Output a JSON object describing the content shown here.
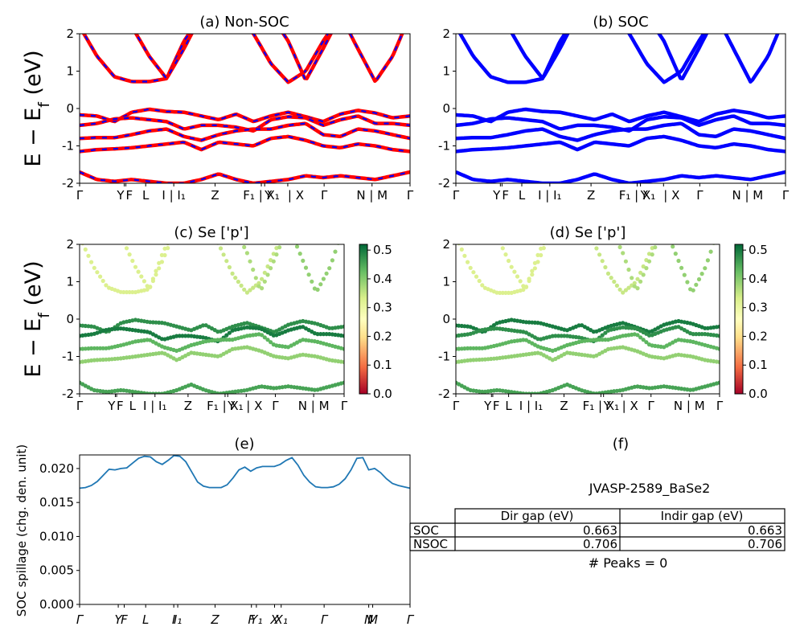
{
  "figure": {
    "material_id": "JVASP-2589_BaSe2",
    "peaks_text": "# Peaks = 0"
  },
  "colors": {
    "nonsoc_band": "#ff0000",
    "soc_band": "#0000ff",
    "spillage_line": "#1f77b4",
    "colormap": [
      "#a50026",
      "#f46d43",
      "#fee08b",
      "#ffffbf",
      "#d9ef8b",
      "#66bd63",
      "#006837"
    ]
  },
  "kpath": {
    "band_labels": [
      "Γ",
      "Y",
      "F",
      "L",
      "I | I₁",
      "Z",
      "F₁ | X₁",
      "Y",
      "| X",
      "Γ",
      "N | M",
      "Γ"
    ],
    "spillage_labels": [
      "Γ",
      "Y",
      "F",
      "L",
      "I",
      "I₁",
      "Z",
      "F",
      "Y₁",
      "X",
      "X₁",
      "Γ",
      "N",
      "M",
      "Γ"
    ]
  },
  "chart_data": [
    {
      "panel": "a",
      "type": "line",
      "title": "(a) Non-SOC",
      "ylabel": "E − E_f (eV)",
      "ylim": [
        -2,
        2
      ],
      "yticks": [
        -2,
        -1,
        0,
        1,
        2
      ],
      "series": [
        {
          "values": [
            -0.17,
            -0.2,
            -0.35,
            -0.1,
            -0.02,
            -0.08,
            -0.1,
            -0.2,
            -0.3,
            -0.15,
            -0.35,
            -0.2,
            -0.1,
            -0.22,
            -0.35,
            -0.15,
            -0.05,
            -0.12,
            -0.25,
            -0.2
          ]
        },
        {
          "values": [
            -0.45,
            -0.4,
            -0.28,
            -0.25,
            -0.3,
            -0.35,
            -0.55,
            -0.45,
            -0.45,
            -0.5,
            -0.6,
            -0.3,
            -0.22,
            -0.25,
            -0.45,
            -0.3,
            -0.2,
            -0.4,
            -0.4,
            -0.45
          ]
        },
        {
          "values": [
            -0.8,
            -0.78,
            -0.78,
            -0.7,
            -0.6,
            -0.55,
            -0.75,
            -0.85,
            -0.7,
            -0.6,
            -0.55,
            -0.55,
            -0.45,
            -0.4,
            -0.7,
            -0.75,
            -0.55,
            -0.6,
            -0.7,
            -0.8
          ]
        },
        {
          "values": [
            -1.15,
            -1.1,
            -1.08,
            -1.05,
            -1.0,
            -0.95,
            -0.9,
            -1.1,
            -0.9,
            -0.95,
            -1.0,
            -0.8,
            -0.75,
            -0.85,
            -1.0,
            -1.05,
            -0.95,
            -1.0,
            -1.1,
            -1.15
          ]
        },
        {
          "values": [
            -1.7,
            -1.9,
            -1.95,
            -1.9,
            -1.95,
            -2.0,
            -2.0,
            -1.9,
            -1.75,
            -1.9,
            -2.0,
            -1.95,
            -1.9,
            -1.8,
            -1.85,
            -1.8,
            -1.85,
            -1.9,
            -1.8,
            -1.7
          ]
        },
        {
          "values": [
            2.2,
            1.4,
            0.85,
            0.72,
            0.72,
            0.8,
            1.8,
            2.5,
            2.5,
            2.5,
            2.5,
            2.5,
            2.5,
            2.5,
            2.5,
            2.5,
            2.5,
            2.5,
            2.5,
            2.5
          ]
        },
        {
          "values": [
            2.5,
            2.5,
            2.5,
            2.2,
            1.4,
            0.8,
            1.6,
            2.5,
            2.5,
            2.5,
            2.5,
            2.5,
            2.5,
            2.5,
            2.5,
            2.5,
            2.5,
            2.5,
            2.5,
            2.5
          ]
        },
        {
          "values": [
            2.5,
            2.5,
            2.5,
            2.5,
            2.5,
            2.5,
            2.5,
            2.5,
            2.5,
            2.5,
            2.0,
            1.2,
            0.7,
            1.0,
            1.8,
            2.5,
            2.5,
            2.5,
            2.5,
            2.5
          ]
        },
        {
          "values": [
            2.5,
            2.5,
            2.5,
            2.5,
            2.5,
            2.5,
            2.5,
            2.5,
            2.5,
            2.5,
            2.5,
            2.5,
            1.8,
            0.75,
            1.6,
            2.5,
            2.5,
            2.5,
            2.5,
            2.5
          ]
        },
        {
          "values": [
            2.5,
            2.5,
            2.5,
            2.5,
            2.5,
            2.5,
            2.5,
            2.5,
            2.5,
            2.5,
            2.5,
            2.5,
            2.5,
            2.5,
            2.5,
            2.5,
            1.6,
            0.72,
            1.4,
            2.5
          ]
        }
      ]
    },
    {
      "panel": "b",
      "type": "line",
      "title": "(b) SOC",
      "ylim": [
        -2,
        2
      ],
      "yticks": [
        -2,
        -1,
        0,
        1,
        2
      ],
      "series": [
        {
          "values": [
            -0.17,
            -0.2,
            -0.35,
            -0.1,
            -0.02,
            -0.08,
            -0.1,
            -0.2,
            -0.3,
            -0.15,
            -0.35,
            -0.2,
            -0.1,
            -0.22,
            -0.35,
            -0.15,
            -0.05,
            -0.12,
            -0.25,
            -0.2
          ]
        },
        {
          "values": [
            -0.45,
            -0.4,
            -0.28,
            -0.25,
            -0.3,
            -0.35,
            -0.55,
            -0.45,
            -0.45,
            -0.5,
            -0.6,
            -0.3,
            -0.22,
            -0.25,
            -0.45,
            -0.3,
            -0.2,
            -0.4,
            -0.4,
            -0.45
          ]
        },
        {
          "values": [
            -0.8,
            -0.78,
            -0.78,
            -0.7,
            -0.6,
            -0.55,
            -0.75,
            -0.85,
            -0.7,
            -0.6,
            -0.55,
            -0.55,
            -0.45,
            -0.4,
            -0.7,
            -0.75,
            -0.55,
            -0.6,
            -0.7,
            -0.8
          ]
        },
        {
          "values": [
            -1.15,
            -1.1,
            -1.08,
            -1.05,
            -1.0,
            -0.95,
            -0.9,
            -1.1,
            -0.9,
            -0.95,
            -1.0,
            -0.8,
            -0.75,
            -0.85,
            -1.0,
            -1.05,
            -0.95,
            -1.0,
            -1.1,
            -1.15
          ]
        },
        {
          "values": [
            -1.7,
            -1.9,
            -1.95,
            -1.9,
            -1.95,
            -2.0,
            -2.0,
            -1.9,
            -1.75,
            -1.9,
            -2.0,
            -1.95,
            -1.9,
            -1.8,
            -1.85,
            -1.8,
            -1.85,
            -1.9,
            -1.8,
            -1.7
          ]
        },
        {
          "values": [
            2.2,
            1.4,
            0.85,
            0.7,
            0.7,
            0.8,
            1.8,
            2.5,
            2.5,
            2.5,
            2.5,
            2.5,
            2.5,
            2.5,
            2.5,
            2.5,
            2.5,
            2.5,
            2.5,
            2.5
          ]
        },
        {
          "values": [
            2.5,
            2.5,
            2.5,
            2.2,
            1.4,
            0.8,
            1.6,
            2.5,
            2.5,
            2.5,
            2.5,
            2.5,
            2.5,
            2.5,
            2.5,
            2.5,
            2.5,
            2.5,
            2.5,
            2.5
          ]
        },
        {
          "values": [
            2.5,
            2.5,
            2.5,
            2.5,
            2.5,
            2.5,
            2.5,
            2.5,
            2.5,
            2.5,
            2.0,
            1.2,
            0.7,
            1.0,
            1.8,
            2.5,
            2.5,
            2.5,
            2.5,
            2.5
          ]
        },
        {
          "values": [
            2.5,
            2.5,
            2.5,
            2.5,
            2.5,
            2.5,
            2.5,
            2.5,
            2.5,
            2.5,
            2.5,
            2.5,
            1.8,
            0.75,
            1.6,
            2.5,
            2.5,
            2.5,
            2.5,
            2.5
          ]
        },
        {
          "values": [
            2.5,
            2.5,
            2.5,
            2.5,
            2.5,
            2.5,
            2.5,
            2.5,
            2.5,
            2.5,
            2.5,
            2.5,
            2.5,
            2.5,
            2.5,
            2.5,
            1.6,
            0.7,
            1.4,
            2.5
          ]
        }
      ]
    },
    {
      "panel": "c",
      "type": "scatter",
      "title": "(c)  Se ['p']",
      "ylabel": "E − E_f (eV)",
      "ylim": [
        -2,
        2
      ],
      "yticks": [
        -2,
        -1,
        0,
        1,
        2
      ],
      "colorbar": {
        "range": [
          0.0,
          0.52
        ],
        "ticks": [
          "0.0",
          "0.1",
          "0.2",
          "0.3",
          "0.4",
          "0.5"
        ]
      },
      "series_weights": [
        0.48,
        0.5,
        0.44,
        0.4,
        0.46,
        0.34,
        0.34,
        0.36,
        0.38,
        0.4
      ]
    },
    {
      "panel": "d",
      "type": "scatter",
      "title": "(d) Se ['p']",
      "ylim": [
        -2,
        2
      ],
      "yticks": [
        -2,
        -1,
        0,
        1,
        2
      ],
      "colorbar": {
        "range": [
          0.0,
          0.52
        ],
        "ticks": [
          "0.0",
          "0.1",
          "0.2",
          "0.3",
          "0.4",
          "0.5"
        ]
      },
      "series_weights": [
        0.5,
        0.48,
        0.44,
        0.4,
        0.46,
        0.34,
        0.34,
        0.36,
        0.38,
        0.4
      ]
    },
    {
      "panel": "e",
      "type": "line",
      "title": "(e)",
      "ylabel": "SOC spillage (chg. den. unit)",
      "ylim": [
        0,
        0.022
      ],
      "yticks": [
        "0.000",
        "0.005",
        "0.010",
        "0.015",
        "0.020"
      ],
      "values": [
        0.0171,
        0.0172,
        0.0175,
        0.0181,
        0.019,
        0.0199,
        0.0198,
        0.02,
        0.0201,
        0.0208,
        0.0215,
        0.0218,
        0.0217,
        0.021,
        0.0206,
        0.0212,
        0.0219,
        0.0218,
        0.021,
        0.0195,
        0.018,
        0.0174,
        0.0172,
        0.0172,
        0.0172,
        0.0176,
        0.0186,
        0.0198,
        0.0202,
        0.0196,
        0.0201,
        0.0203,
        0.0203,
        0.0203,
        0.0206,
        0.0212,
        0.0216,
        0.0205,
        0.019,
        0.018,
        0.0173,
        0.0172,
        0.0172,
        0.0173,
        0.0177,
        0.0185,
        0.0198,
        0.0215,
        0.0216,
        0.0198,
        0.02,
        0.0194,
        0.0185,
        0.0178,
        0.0175,
        0.0173,
        0.0171
      ]
    },
    {
      "panel": "f",
      "type": "table",
      "title": "(f)",
      "columns": [
        "",
        "Dir gap (eV)",
        "Indir gap (eV)"
      ],
      "rows": [
        [
          "SOC",
          "0.663",
          "0.663"
        ],
        [
          "NSOC",
          "0.706",
          "0.706"
        ]
      ]
    }
  ]
}
